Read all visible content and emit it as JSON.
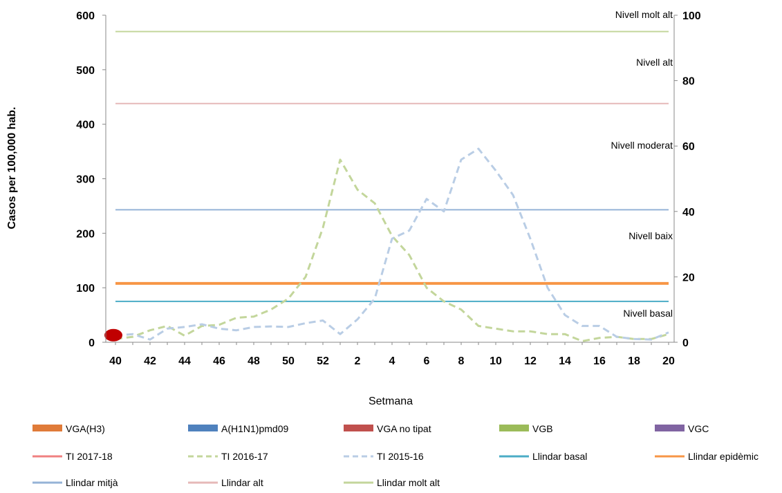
{
  "chart_data": {
    "type": "line",
    "ylabel": "Casos per 100,000 hab.",
    "xlabel": "Setmana",
    "left_axis": {
      "min": 0,
      "max": 600,
      "ticks": [
        "0",
        "100",
        "200",
        "300",
        "400",
        "500",
        "600"
      ]
    },
    "right_axis": {
      "min": 0,
      "max": 100,
      "ticks": [
        "0",
        "20",
        "40",
        "60",
        "80",
        "100"
      ]
    },
    "x_categories": [
      "40",
      "41",
      "42",
      "43",
      "44",
      "45",
      "46",
      "47",
      "48",
      "49",
      "50",
      "51",
      "52",
      "1",
      "2",
      "3",
      "4",
      "5",
      "6",
      "7",
      "8",
      "9",
      "10",
      "11",
      "12",
      "13",
      "14",
      "15",
      "16",
      "17",
      "18",
      "19",
      "20"
    ],
    "x_tick_labels": [
      "40",
      "42",
      "44",
      "46",
      "48",
      "50",
      "52",
      "2",
      "4",
      "6",
      "8",
      "10",
      "12",
      "14",
      "16",
      "18",
      "20"
    ],
    "series": [
      {
        "name": "TI 2016-17",
        "color": "#c3d69b",
        "dash": true,
        "values": [
          6,
          10,
          22,
          30,
          12,
          30,
          32,
          45,
          47,
          60,
          80,
          120,
          210,
          335,
          280,
          255,
          195,
          160,
          100,
          75,
          60,
          30,
          25,
          20,
          20,
          15,
          15,
          2,
          8,
          10,
          6,
          6,
          15
        ]
      },
      {
        "name": "TI 2015-16",
        "color": "#b9cde5",
        "dash": true,
        "values": [
          12,
          15,
          5,
          25,
          28,
          33,
          25,
          22,
          28,
          29,
          28,
          35,
          40,
          15,
          42,
          80,
          190,
          205,
          263,
          240,
          335,
          355,
          315,
          270,
          190,
          100,
          50,
          30,
          30,
          10,
          6,
          5,
          18
        ]
      },
      {
        "name": "Llindar basal",
        "color": "#4bacc6",
        "dash": false,
        "constant": 75
      },
      {
        "name": "Llindar epidèmic",
        "color": "#f79646",
        "dash": false,
        "constant": 108
      },
      {
        "name": "Llindar  mitjà",
        "color": "#95b3d7",
        "dash": false,
        "constant": 243
      },
      {
        "name": "Llindar alt",
        "color": "#e6b9b8",
        "dash": false,
        "constant": 438
      },
      {
        "name": "Llindar molt alt",
        "color": "#c3d69b",
        "dash": false,
        "constant": 570
      }
    ],
    "current_point": {
      "x": "40",
      "y": 13,
      "color": "#c00000"
    },
    "level_labels": [
      "Nivell molt alt",
      "Nivell alt",
      "Nivell moderat",
      "Nivell baix",
      "Nivell basal"
    ],
    "legend": [
      {
        "label": "VGA(H3)",
        "color": "#e07b39",
        "style": "bar"
      },
      {
        "label": "A(H1N1)pmd09",
        "color": "#4f81bd",
        "style": "bar"
      },
      {
        "label": "VGA no tipat",
        "color": "#c0504d",
        "style": "bar"
      },
      {
        "label": "VGB",
        "color": "#9bbb59",
        "style": "bar"
      },
      {
        "label": "VGC",
        "color": "#8064a2",
        "style": "bar"
      },
      {
        "label": "TI 2017-18",
        "color": "#f08080",
        "style": "line"
      },
      {
        "label": "TI 2016-17",
        "color": "#c3d69b",
        "style": "dash"
      },
      {
        "label": "TI 2015-16",
        "color": "#b9cde5",
        "style": "dash"
      },
      {
        "label": "Llindar basal",
        "color": "#4bacc6",
        "style": "line"
      },
      {
        "label": "Llindar epidèmic",
        "color": "#f79646",
        "style": "line"
      },
      {
        "label": "Llindar  mitjà",
        "color": "#95b3d7",
        "style": "line"
      },
      {
        "label": "Llindar alt",
        "color": "#e6b9b8",
        "style": "line"
      },
      {
        "label": "Llindar molt alt",
        "color": "#c3d69b",
        "style": "line"
      }
    ],
    "grid": false,
    "legend_placement": "bottom"
  }
}
